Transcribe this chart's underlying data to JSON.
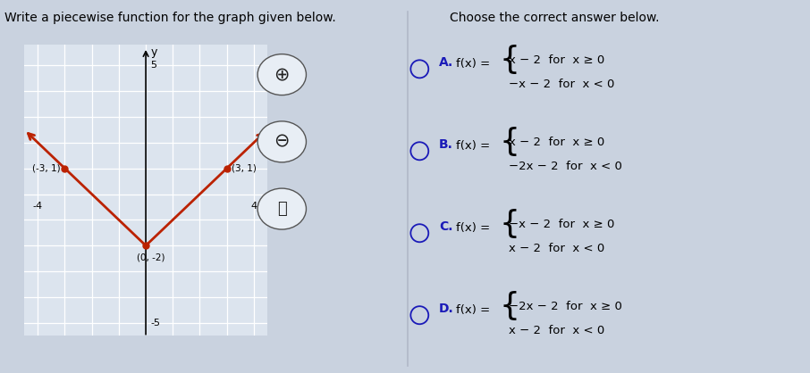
{
  "title_left": "Write a piecewise function for the graph given below.",
  "title_right": "Choose the correct answer below.",
  "graph_points": [
    [
      -3,
      1
    ],
    [
      0,
      -2
    ],
    [
      3,
      1
    ]
  ],
  "graph_color": "#bb2200",
  "xlim": [
    -4.5,
    4.5
  ],
  "ylim": [
    -5.5,
    5.8
  ],
  "xtick_label_pos": [
    [
      -4,
      "-4"
    ],
    [
      4,
      "4"
    ]
  ],
  "ytick_label_pos": [
    [
      5,
      "5"
    ],
    [
      -5,
      "-5"
    ]
  ],
  "bg_light": "#dce4ee",
  "bg_white": "#ffffff",
  "outer_bg": "#c9d2df",
  "answer_letter_color": "#1a1ab8",
  "radio_color": "#1a1ab8",
  "divider_color": "#b0b8c8",
  "options": [
    {
      "letter": "A.",
      "line1": "x − 2  for  x ≥ 0",
      "line2": "−x − 2  for  x < 0"
    },
    {
      "letter": "B.",
      "line1": "x − 2  for  x ≥ 0",
      "line2": "−2x − 2  for  x < 0"
    },
    {
      "letter": "C.",
      "line1": "−x − 2  for  x ≥ 0",
      "line2": "x − 2  for  x < 0"
    },
    {
      "letter": "D.",
      "line1": "−2x − 2  for  x ≥ 0",
      "line2": "x − 2  for  x < 0"
    }
  ]
}
